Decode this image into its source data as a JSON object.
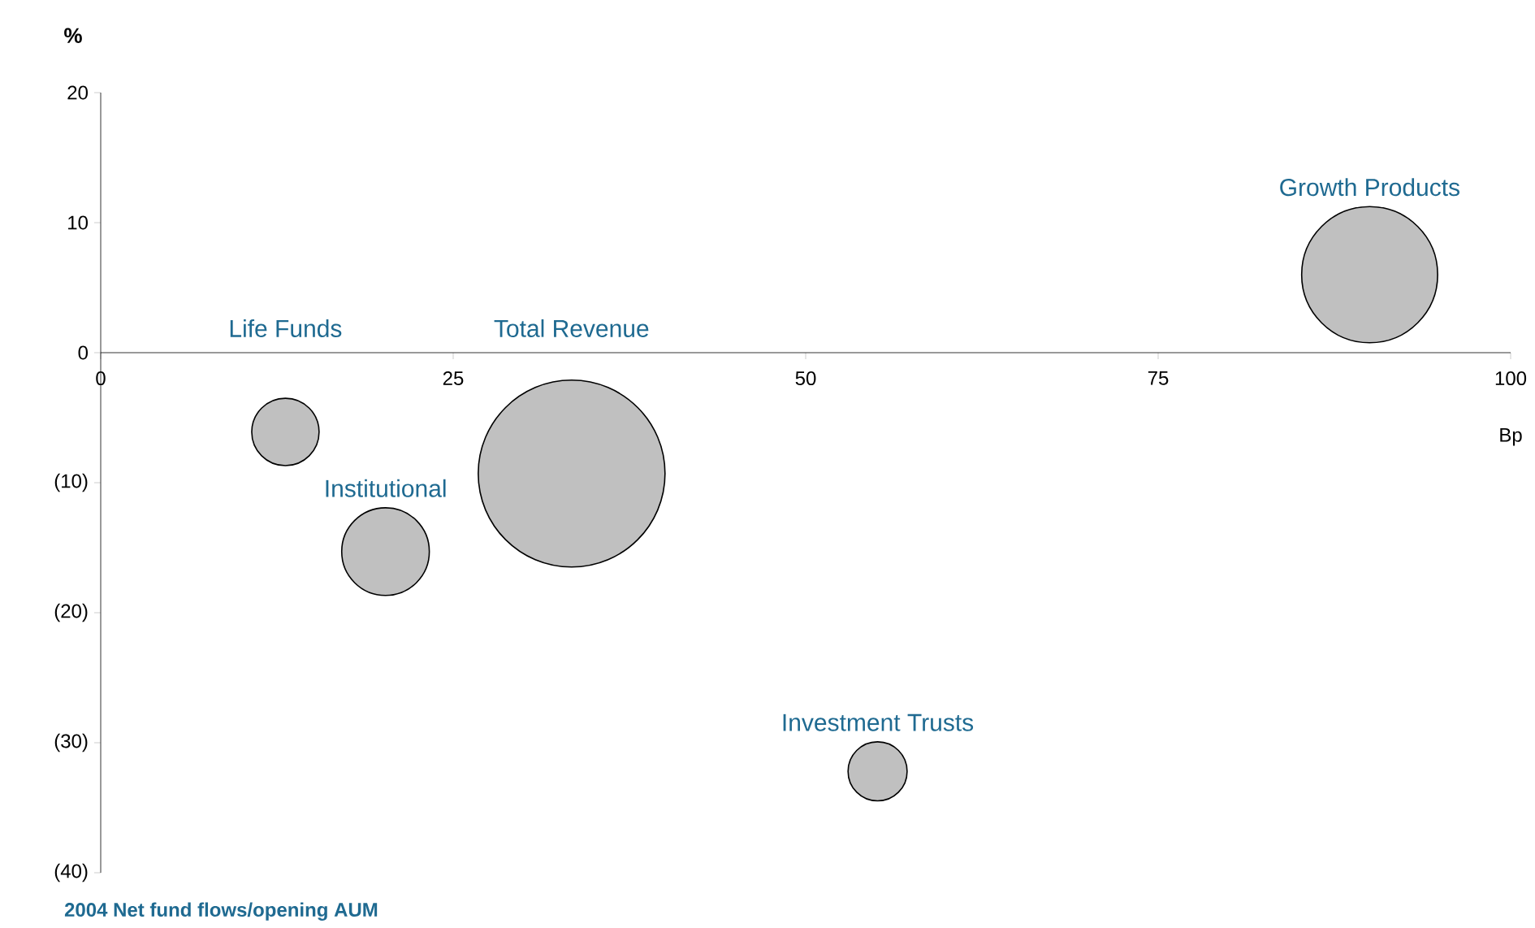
{
  "chart_data": {
    "type": "bubble",
    "title": "2004 Net fund flows/opening AUM",
    "xlabel": "Bp",
    "ylabel": "%",
    "xlim": [
      0,
      100
    ],
    "xticks": [
      {
        "value": 0,
        "label": "0"
      },
      {
        "value": 25,
        "label": "25"
      },
      {
        "value": 50,
        "label": "50"
      },
      {
        "value": 75,
        "label": "75"
      },
      {
        "value": 100,
        "label": "100"
      }
    ],
    "ylim": [
      -40,
      20
    ],
    "yticks": [
      {
        "value": -40,
        "label": "(40)"
      },
      {
        "value": -30,
        "label": "(30)"
      },
      {
        "value": -20,
        "label": "(20)"
      },
      {
        "value": -10,
        "label": "(10)"
      },
      {
        "value": 0,
        "label": "0"
      },
      {
        "value": 10,
        "label": "10"
      },
      {
        "value": 20,
        "label": "20"
      }
    ],
    "grid": false,
    "series": [
      {
        "name": "Life Funds",
        "color": "#c0c0c0",
        "x": [
          13.1
        ],
        "values": [
          -6.1
        ],
        "sizes": [
          0.13
        ]
      },
      {
        "name": "Institutional",
        "color": "#c0c0c0",
        "x": [
          20.2
        ],
        "values": [
          -15.3
        ],
        "sizes": [
          0.22
        ]
      },
      {
        "name": "Total Revenue",
        "color": "#c0c0c0",
        "x": [
          33.4
        ],
        "values": [
          -9.3
        ],
        "sizes": [
          1
        ]
      },
      {
        "name": "Investment Trusts",
        "color": "#c0c0c0",
        "x": [
          55.1
        ],
        "values": [
          -32.2
        ],
        "sizes": [
          0.1
        ]
      },
      {
        "name": "Growth Products",
        "color": "#c0c0c0",
        "x": [
          90.0
        ],
        "values": [
          6.0
        ],
        "sizes": [
          0.53
        ]
      }
    ]
  }
}
